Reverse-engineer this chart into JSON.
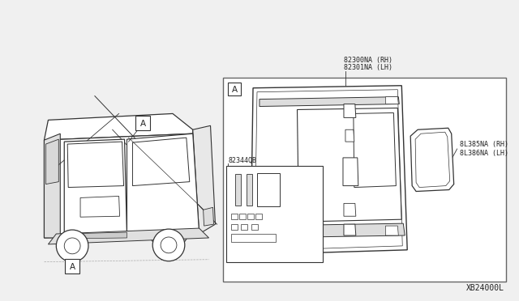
{
  "bg_color": "#f0f0f0",
  "border_color": "#555555",
  "line_color": "#333333",
  "text_color": "#222222",
  "title_bottom": "XB24000L",
  "label_main_rh": "82300NA (RH)",
  "label_main_lh": "82301NA (LH)",
  "label_small_rh": "8L385NA (RH)",
  "label_small_lh": "8L386NA (LH)",
  "label_kit": "82344QB",
  "label_view": "A"
}
